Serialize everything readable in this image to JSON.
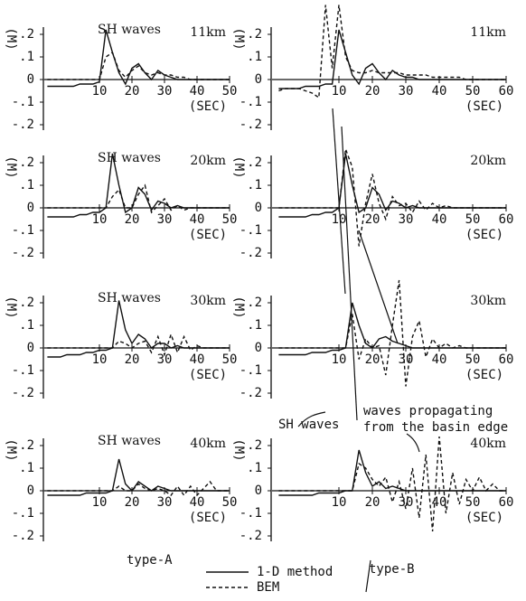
{
  "chart_data": [
    {
      "type": "line",
      "title": "SH waves",
      "label": "11km",
      "ylabel": "(M)",
      "xlabel": "(SEC)",
      "xlim": [
        -7,
        50
      ],
      "ylim": [
        -0.2,
        0.2
      ],
      "yticks": [
        {
          "value": 0.2,
          "label": ".2"
        },
        {
          "value": 0.1,
          "label": ".1"
        },
        0,
        {
          "value": -0.1,
          "label": "-.1"
        },
        {
          "value": -0.2,
          "label": "-.2"
        }
      ],
      "xticks": [
        10,
        20,
        30,
        40,
        50
      ],
      "x": [
        -6,
        -4,
        -2,
        0,
        2,
        4,
        6,
        8,
        10,
        12,
        14,
        16,
        18,
        20,
        22,
        24,
        26,
        28,
        30,
        32,
        34,
        36,
        38,
        40,
        42,
        44,
        46,
        48,
        50
      ],
      "series": [
        {
          "dash": false,
          "values": [
            -0.03,
            -0.03,
            -0.03,
            -0.03,
            -0.03,
            -0.02,
            -0.02,
            -0.02,
            -0.01,
            0.22,
            0.12,
            0.03,
            -0.02,
            0.05,
            0.07,
            0.03,
            0.0,
            0.04,
            0.02,
            0.01,
            0.0,
            0.0,
            0.0,
            0.0,
            0.0,
            0.0,
            0.0,
            0.0,
            0.0
          ]
        },
        {
          "dash": true,
          "values": [
            0,
            0,
            0,
            0,
            0,
            0,
            0,
            0,
            0.0,
            0.1,
            0.12,
            0.04,
            0.01,
            0.04,
            0.06,
            0.03,
            0.02,
            0.03,
            0.02,
            0.02,
            0.01,
            0.01,
            0.0,
            0.0,
            0.0,
            0.0,
            0.0,
            0.0,
            0.0
          ]
        }
      ]
    },
    {
      "type": "line",
      "label": "11km",
      "ylabel": "(M)",
      "xlabel": "(SEC)",
      "xlim": [
        -10,
        60
      ],
      "ylim": [
        -0.2,
        0.2
      ],
      "yticks": [
        {
          "value": 0.2,
          "label": ".2"
        },
        {
          "value": 0.1,
          "label": ".1"
        },
        0,
        {
          "value": -0.1,
          "label": "-.1"
        },
        {
          "value": -0.2,
          "label": "-.2"
        }
      ],
      "xticks": [
        10,
        20,
        30,
        40,
        50,
        60
      ],
      "x": [
        -8,
        -6,
        -4,
        -2,
        0,
        2,
        4,
        6,
        8,
        10,
        12,
        14,
        16,
        18,
        20,
        22,
        24,
        26,
        28,
        30,
        32,
        34,
        36,
        38,
        40,
        42,
        44,
        46,
        48,
        50,
        52,
        54,
        56,
        58,
        60
      ],
      "series": [
        {
          "dash": false,
          "values": [
            -0.04,
            -0.04,
            -0.04,
            -0.04,
            -0.03,
            -0.03,
            -0.03,
            -0.02,
            -0.02,
            0.22,
            0.12,
            0.02,
            -0.02,
            0.05,
            0.07,
            0.03,
            0.0,
            0.04,
            0.02,
            0.01,
            0.01,
            0,
            0,
            0,
            0,
            0,
            0,
            0,
            0,
            0,
            0,
            0,
            0,
            0,
            0
          ]
        },
        {
          "dash": true,
          "values": [
            -0.05,
            -0.04,
            -0.04,
            -0.04,
            -0.05,
            -0.06,
            -0.08,
            0.33,
            0.05,
            0.33,
            0.1,
            0.04,
            0.03,
            0.03,
            0.04,
            0.03,
            0.03,
            0.03,
            0.03,
            0.02,
            0.02,
            0.02,
            0.02,
            0.01,
            0.01,
            0.01,
            0.01,
            0.01,
            0,
            0,
            0,
            0,
            0,
            0,
            0
          ]
        }
      ]
    },
    {
      "type": "line",
      "title": "SH waves",
      "label": "20km",
      "ylabel": "(M)",
      "xlabel": "(SEC)",
      "xlim": [
        -7,
        50
      ],
      "ylim": [
        -0.2,
        0.2
      ],
      "yticks": [
        {
          "value": 0.2,
          "label": ".2"
        },
        {
          "value": 0.1,
          "label": ".1"
        },
        0,
        {
          "value": -0.1,
          "label": "-.1"
        },
        {
          "value": -0.2,
          "label": "-.2"
        }
      ],
      "xticks": [
        10,
        20,
        30,
        40,
        50
      ],
      "x": [
        -6,
        -4,
        -2,
        0,
        2,
        4,
        6,
        8,
        10,
        12,
        14,
        16,
        18,
        20,
        22,
        24,
        26,
        28,
        30,
        32,
        34,
        36,
        38,
        40,
        42,
        44,
        46,
        48,
        50
      ],
      "series": [
        {
          "dash": false,
          "values": [
            -0.04,
            -0.04,
            -0.04,
            -0.04,
            -0.04,
            -0.03,
            -0.03,
            -0.02,
            -0.02,
            0.0,
            0.24,
            0.1,
            -0.02,
            0.0,
            0.09,
            0.06,
            -0.01,
            0.03,
            0.02,
            0.0,
            0.01,
            0.0,
            0.0,
            0.0,
            0.0,
            0.0,
            0.0,
            0.0,
            0.0
          ]
        },
        {
          "dash": true,
          "values": [
            0,
            0,
            0,
            0,
            0,
            0,
            0,
            0,
            0,
            0,
            0.05,
            0.08,
            0.0,
            0.0,
            0.06,
            0.1,
            -0.02,
            0.01,
            0.04,
            -0.01,
            0.01,
            -0.01,
            0.0,
            0.0,
            0.0,
            0.0,
            0.0,
            0.0,
            0.0
          ]
        }
      ]
    },
    {
      "type": "line",
      "label": "20km",
      "ylabel": "(M)",
      "xlabel": "(SEC)",
      "xlim": [
        -10,
        60
      ],
      "ylim": [
        -0.2,
        0.2
      ],
      "yticks": [
        {
          "value": 0.2,
          "label": ".2"
        },
        {
          "value": 0.1,
          "label": ".1"
        },
        0,
        {
          "value": -0.1,
          "label": "-.1"
        },
        {
          "value": -0.2,
          "label": "-.2"
        }
      ],
      "xticks": [
        10,
        20,
        30,
        40,
        50,
        60
      ],
      "x": [
        -8,
        -6,
        -4,
        -2,
        0,
        2,
        4,
        6,
        8,
        10,
        12,
        14,
        16,
        18,
        20,
        22,
        24,
        26,
        28,
        30,
        32,
        34,
        36,
        38,
        40,
        42,
        44,
        46,
        48,
        50,
        52,
        54,
        56,
        58,
        60
      ],
      "series": [
        {
          "dash": false,
          "values": [
            -0.04,
            -0.04,
            -0.04,
            -0.04,
            -0.04,
            -0.03,
            -0.03,
            -0.02,
            -0.02,
            0.0,
            0.24,
            0.1,
            -0.02,
            0.0,
            0.09,
            0.06,
            -0.01,
            0.03,
            0.02,
            0.0,
            0.01,
            0,
            0,
            0,
            0,
            0,
            0,
            0,
            0,
            0,
            0,
            0,
            0,
            0,
            0
          ]
        },
        {
          "dash": true,
          "values": [
            0,
            0,
            0,
            0,
            0,
            0,
            0,
            0,
            0,
            0,
            0.26,
            0.18,
            -0.17,
            0.02,
            0.15,
            0.02,
            -0.05,
            0.05,
            0.01,
            0.02,
            -0.02,
            0.03,
            -0.01,
            0.02,
            0.0,
            0.01,
            0,
            0,
            0,
            0,
            0,
            0,
            0,
            0,
            0
          ]
        }
      ]
    },
    {
      "type": "line",
      "title": "SH waves",
      "label": "30km",
      "ylabel": "(M)",
      "xlabel": "(SEC)",
      "xlim": [
        -7,
        50
      ],
      "ylim": [
        -0.2,
        0.2
      ],
      "yticks": [
        {
          "value": 0.2,
          "label": ".2"
        },
        {
          "value": 0.1,
          "label": ".1"
        },
        0,
        {
          "value": -0.1,
          "label": "-.1"
        },
        {
          "value": -0.2,
          "label": "-.2"
        }
      ],
      "xticks": [
        10,
        20,
        30,
        40,
        50
      ],
      "x": [
        -6,
        -4,
        -2,
        0,
        2,
        4,
        6,
        8,
        10,
        12,
        14,
        16,
        18,
        20,
        22,
        24,
        26,
        28,
        30,
        32,
        34,
        36,
        38,
        40,
        42,
        44,
        46,
        48,
        50
      ],
      "series": [
        {
          "dash": false,
          "values": [
            -0.04,
            -0.04,
            -0.04,
            -0.03,
            -0.03,
            -0.03,
            -0.02,
            -0.02,
            -0.01,
            -0.01,
            0.0,
            0.21,
            0.08,
            0.02,
            0.06,
            0.04,
            0.0,
            0.02,
            0.02,
            0.0,
            0.01,
            0.0,
            0.0,
            0.0,
            0.0,
            0.0,
            0.0,
            0.0,
            0.0
          ]
        },
        {
          "dash": true,
          "values": [
            0,
            0,
            0,
            0,
            0,
            0,
            0,
            0,
            0,
            0,
            0,
            0.03,
            0.02,
            0.0,
            0.02,
            0.03,
            -0.02,
            0.05,
            -0.03,
            0.06,
            -0.02,
            0.05,
            -0.01,
            0.01,
            0.0,
            0.0,
            0.0,
            0.0,
            0.0
          ]
        }
      ]
    },
    {
      "type": "line",
      "label": "30km",
      "ylabel": "(M)",
      "xlabel": "(SEC)",
      "xlim": [
        -10,
        60
      ],
      "ylim": [
        -0.2,
        0.2
      ],
      "yticks": [
        {
          "value": 0.2,
          "label": ".2"
        },
        {
          "value": 0.1,
          "label": ".1"
        },
        0,
        {
          "value": -0.1,
          "label": "-.1"
        },
        {
          "value": -0.2,
          "label": "-.2"
        }
      ],
      "xticks": [
        10,
        20,
        30,
        40,
        50,
        60
      ],
      "x": [
        -8,
        -6,
        -4,
        -2,
        0,
        2,
        4,
        6,
        8,
        10,
        12,
        14,
        16,
        18,
        20,
        22,
        24,
        26,
        28,
        30,
        32,
        34,
        36,
        38,
        40,
        42,
        44,
        46,
        48,
        50,
        52,
        54,
        56,
        58,
        60
      ],
      "series": [
        {
          "dash": false,
          "values": [
            -0.03,
            -0.03,
            -0.03,
            -0.03,
            -0.03,
            -0.02,
            -0.02,
            -0.02,
            -0.01,
            -0.01,
            0.0,
            0.2,
            0.1,
            0.02,
            0.0,
            0.04,
            0.05,
            0.03,
            0.02,
            0.01,
            0,
            0,
            0,
            0,
            0,
            0,
            0,
            0,
            0,
            0,
            0,
            0,
            0,
            0,
            0
          ]
        },
        {
          "dash": true,
          "values": [
            0,
            0,
            0,
            0,
            0,
            0,
            0,
            0,
            0,
            0,
            0.0,
            0.15,
            -0.05,
            0.04,
            0.0,
            0.01,
            -0.12,
            0.1,
            0.3,
            -0.17,
            0.05,
            0.12,
            -0.04,
            0.04,
            0.0,
            0.02,
            0.0,
            0.01,
            0,
            0,
            0,
            0,
            0,
            0,
            0
          ]
        }
      ]
    },
    {
      "type": "line",
      "title": "SH waves",
      "label": "40km",
      "ylabel": "(M)",
      "xlabel": "(SEC)",
      "xlim": [
        -7,
        50
      ],
      "ylim": [
        -0.2,
        0.2
      ],
      "yticks": [
        {
          "value": 0.2,
          "label": ".2"
        },
        {
          "value": 0.1,
          "label": ".1"
        },
        0,
        {
          "value": -0.1,
          "label": "-.1"
        },
        {
          "value": -0.2,
          "label": "-.2"
        }
      ],
      "xticks": [
        10,
        20,
        30,
        40,
        50
      ],
      "x": [
        -6,
        -4,
        -2,
        0,
        2,
        4,
        6,
        8,
        10,
        12,
        14,
        16,
        18,
        20,
        22,
        24,
        26,
        28,
        30,
        32,
        34,
        36,
        38,
        40,
        42,
        44,
        46,
        48,
        50
      ],
      "series": [
        {
          "dash": false,
          "values": [
            -0.02,
            -0.02,
            -0.02,
            -0.02,
            -0.02,
            -0.02,
            -0.01,
            -0.01,
            -0.01,
            -0.01,
            0.0,
            0.14,
            0.03,
            0.0,
            0.04,
            0.02,
            0.0,
            0.02,
            0.01,
            0.0,
            0.0,
            0.0,
            0.0,
            0.0,
            0.0,
            0.0,
            0.0,
            0.0,
            0.0
          ]
        },
        {
          "dash": true,
          "values": [
            0,
            0,
            0,
            0,
            0,
            0,
            0,
            0,
            0,
            0,
            0,
            0.02,
            0.0,
            0.0,
            0.03,
            0.01,
            0.0,
            0.01,
            0.0,
            -0.02,
            0.02,
            -0.02,
            0.02,
            -0.02,
            0.01,
            0.04,
            0.0,
            0.0,
            0.0
          ]
        }
      ]
    },
    {
      "type": "line",
      "label": "40km",
      "ylabel": "(M)",
      "xlabel": "(SEC)",
      "xlim": [
        -10,
        60
      ],
      "ylim": [
        -0.2,
        0.2
      ],
      "yticks": [
        {
          "value": 0.2,
          "label": ".2"
        },
        {
          "value": 0.1,
          "label": ".1"
        },
        0,
        {
          "value": -0.1,
          "label": "-.1"
        },
        {
          "value": -0.2,
          "label": "-.2"
        }
      ],
      "xticks": [
        10,
        20,
        30,
        40,
        50,
        60
      ],
      "x": [
        -8,
        -6,
        -4,
        -2,
        0,
        2,
        4,
        6,
        8,
        10,
        12,
        14,
        16,
        18,
        20,
        22,
        24,
        26,
        28,
        30,
        32,
        34,
        36,
        38,
        40,
        42,
        44,
        46,
        48,
        50,
        52,
        54,
        56,
        58,
        60
      ],
      "series": [
        {
          "dash": false,
          "values": [
            -0.02,
            -0.02,
            -0.02,
            -0.02,
            -0.02,
            -0.02,
            -0.01,
            -0.01,
            -0.01,
            -0.01,
            0.0,
            0.0,
            0.18,
            0.08,
            0.02,
            0.04,
            0.01,
            0.02,
            0.01,
            0.0,
            0,
            0,
            0,
            0,
            0,
            0,
            0,
            0,
            0,
            0,
            0,
            0,
            0,
            0,
            0
          ]
        },
        {
          "dash": true,
          "values": [
            0,
            0,
            0,
            0,
            0,
            0,
            0,
            0,
            0,
            0,
            0,
            0,
            0.12,
            0.1,
            0.05,
            0.02,
            0.06,
            -0.05,
            0.04,
            -0.08,
            0.1,
            -0.12,
            0.16,
            -0.18,
            0.24,
            -0.1,
            0.08,
            -0.06,
            0.05,
            0.0,
            0.06,
            0.0,
            0.03,
            0,
            0
          ]
        }
      ]
    }
  ],
  "legend": [
    {
      "name": "1-D method",
      "dash": false
    },
    {
      "name": "BEM",
      "dash": true
    }
  ],
  "labels": {
    "type_a": "type-A",
    "type_b": "type-B",
    "sh_waves": "SH waves",
    "propagating": [
      "waves propagating",
      "from the basin edge"
    ]
  }
}
